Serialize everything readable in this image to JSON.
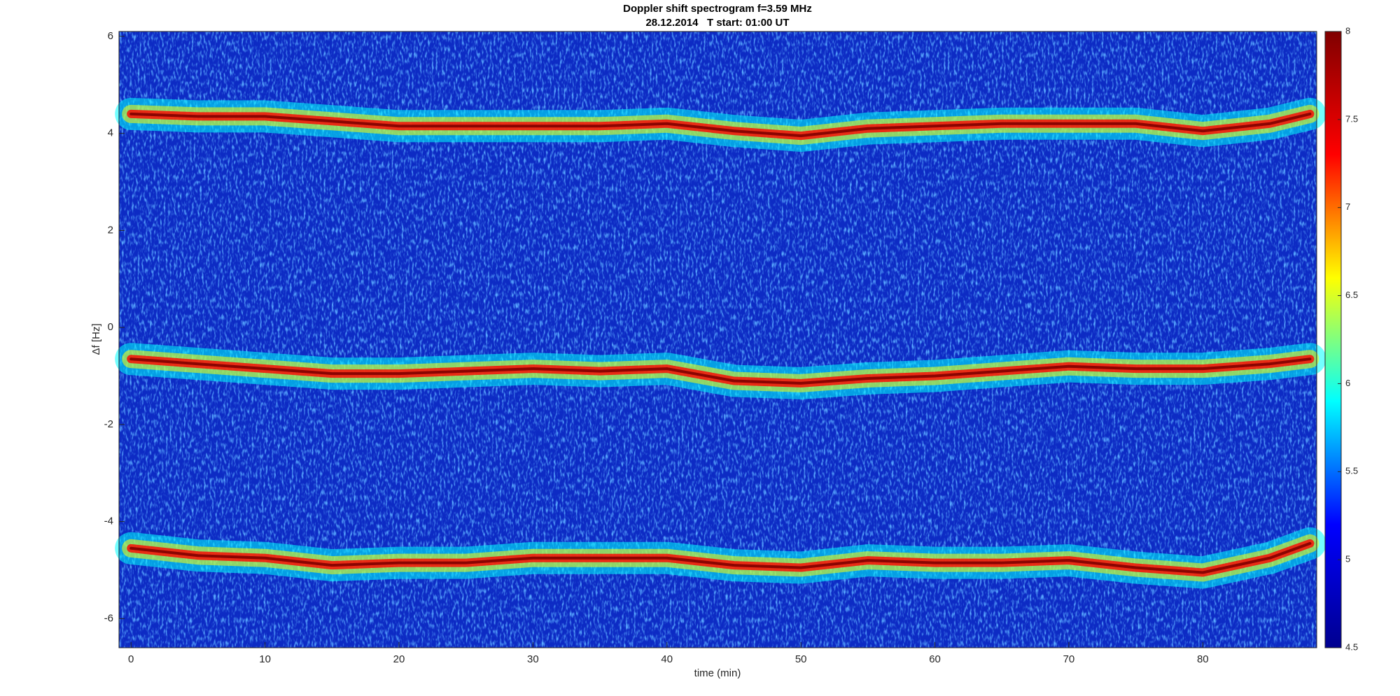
{
  "chart_data": {
    "type": "spectrogram",
    "title": "Doppler shift spectrogram f=3.59 MHz",
    "subtitle": "28.12.2014   T start: 01:00 UT",
    "xlabel": "time (min)",
    "ylabel": "Δf [Hz]",
    "xlim": [
      -0.9,
      88.5
    ],
    "ylim": [
      -6.6,
      6.1
    ],
    "xticks": [
      0,
      10,
      20,
      30,
      40,
      50,
      60,
      70,
      80
    ],
    "yticks": [
      -6,
      -4,
      -2,
      0,
      2,
      4,
      6
    ],
    "background": "#0d2bc4",
    "colormap": [
      "#00008f",
      "#0000ff",
      "#00ffff",
      "#ffff00",
      "#ff0000",
      "#800000"
    ],
    "clim": [
      4.5,
      8
    ],
    "cticks": [
      4.5,
      5,
      5.5,
      6,
      6.5,
      7,
      7.5,
      8
    ],
    "x": [
      0,
      5,
      10,
      15,
      20,
      25,
      30,
      35,
      40,
      45,
      50,
      55,
      60,
      65,
      70,
      75,
      80,
      85,
      88
    ],
    "traces": [
      {
        "values": [
          4.4,
          4.35,
          4.35,
          4.25,
          4.15,
          4.15,
          4.15,
          4.15,
          4.2,
          4.05,
          3.95,
          4.1,
          4.15,
          4.2,
          4.2,
          4.2,
          4.05,
          4.2,
          4.4
        ]
      },
      {
        "values": [
          -0.65,
          -0.75,
          -0.85,
          -0.95,
          -0.95,
          -0.9,
          -0.85,
          -0.9,
          -0.85,
          -1.1,
          -1.15,
          -1.05,
          -1.0,
          -0.9,
          -0.8,
          -0.85,
          -0.85,
          -0.75,
          -0.65
        ]
      },
      {
        "values": [
          -4.55,
          -4.7,
          -4.75,
          -4.9,
          -4.85,
          -4.85,
          -4.75,
          -4.75,
          -4.75,
          -4.9,
          -4.95,
          -4.8,
          -4.85,
          -4.85,
          -4.8,
          -4.95,
          -5.05,
          -4.75,
          -4.45
        ]
      }
    ]
  }
}
